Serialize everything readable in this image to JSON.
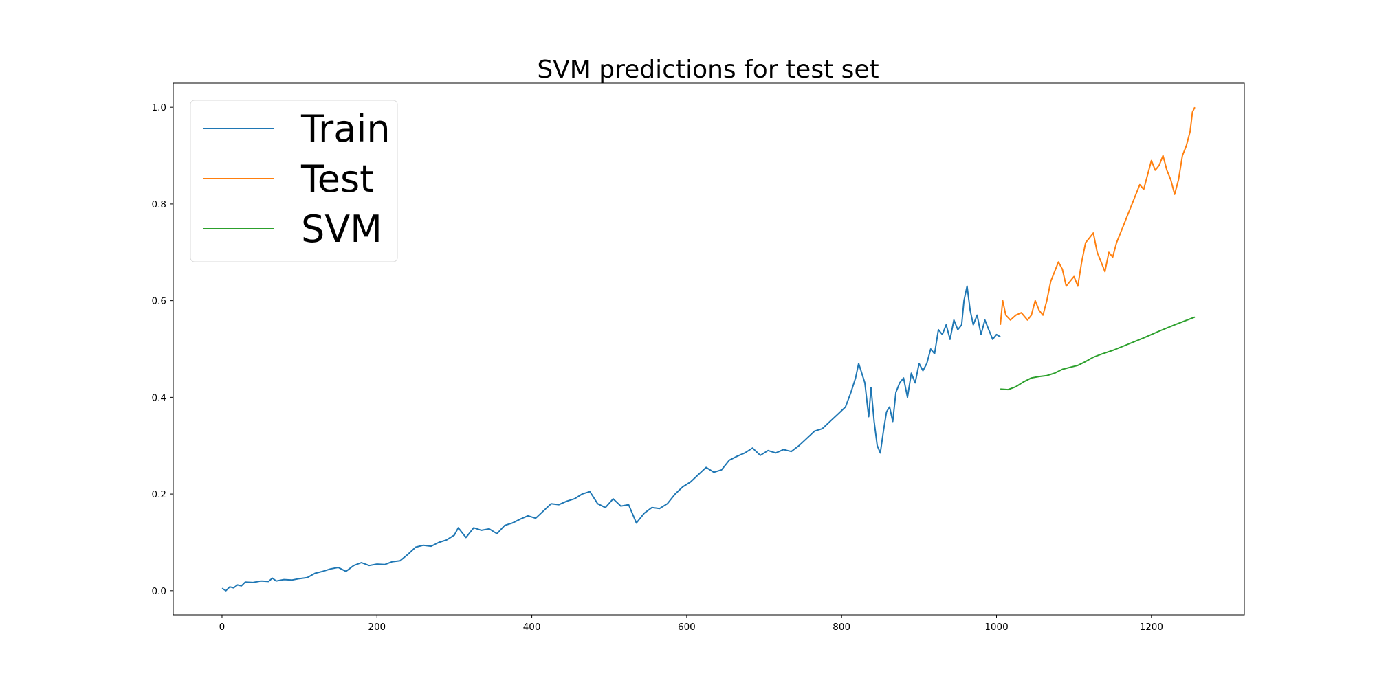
{
  "chart_data": {
    "type": "line",
    "title": "SVM predictions for test set",
    "xlabel": "",
    "ylabel": "",
    "xlim": [
      -63,
      1320
    ],
    "ylim": [
      -0.05,
      1.05
    ],
    "xticks": [
      0,
      200,
      400,
      600,
      800,
      1000,
      1200
    ],
    "yticks": [
      0.0,
      0.2,
      0.4,
      0.6,
      0.8,
      1.0
    ],
    "xtick_labels": [
      "0",
      "200",
      "400",
      "600",
      "800",
      "1000",
      "1200"
    ],
    "ytick_labels": [
      "0.0",
      "0.2",
      "0.4",
      "0.6",
      "0.8",
      "1.0"
    ],
    "grid": false,
    "legend_position": "top-left",
    "series": [
      {
        "name": "Train",
        "color": "#1f77b4",
        "points": [
          [
            0,
            0.005
          ],
          [
            5,
            0.0
          ],
          [
            10,
            0.008
          ],
          [
            15,
            0.006
          ],
          [
            20,
            0.012
          ],
          [
            25,
            0.01
          ],
          [
            30,
            0.018
          ],
          [
            40,
            0.017
          ],
          [
            50,
            0.02
          ],
          [
            60,
            0.019
          ],
          [
            65,
            0.026
          ],
          [
            70,
            0.02
          ],
          [
            80,
            0.023
          ],
          [
            90,
            0.022
          ],
          [
            100,
            0.025
          ],
          [
            110,
            0.027
          ],
          [
            120,
            0.036
          ],
          [
            130,
            0.04
          ],
          [
            140,
            0.045
          ],
          [
            150,
            0.048
          ],
          [
            160,
            0.04
          ],
          [
            170,
            0.052
          ],
          [
            180,
            0.058
          ],
          [
            190,
            0.052
          ],
          [
            200,
            0.055
          ],
          [
            210,
            0.054
          ],
          [
            220,
            0.06
          ],
          [
            230,
            0.062
          ],
          [
            240,
            0.075
          ],
          [
            250,
            0.09
          ],
          [
            260,
            0.094
          ],
          [
            270,
            0.092
          ],
          [
            280,
            0.1
          ],
          [
            290,
            0.105
          ],
          [
            300,
            0.115
          ],
          [
            305,
            0.13
          ],
          [
            315,
            0.11
          ],
          [
            325,
            0.13
          ],
          [
            335,
            0.125
          ],
          [
            345,
            0.128
          ],
          [
            355,
            0.118
          ],
          [
            365,
            0.135
          ],
          [
            375,
            0.14
          ],
          [
            385,
            0.148
          ],
          [
            395,
            0.155
          ],
          [
            405,
            0.15
          ],
          [
            415,
            0.165
          ],
          [
            425,
            0.18
          ],
          [
            435,
            0.178
          ],
          [
            445,
            0.185
          ],
          [
            455,
            0.19
          ],
          [
            465,
            0.2
          ],
          [
            475,
            0.205
          ],
          [
            485,
            0.18
          ],
          [
            495,
            0.172
          ],
          [
            505,
            0.19
          ],
          [
            515,
            0.175
          ],
          [
            525,
            0.178
          ],
          [
            535,
            0.14
          ],
          [
            545,
            0.16
          ],
          [
            555,
            0.172
          ],
          [
            565,
            0.17
          ],
          [
            575,
            0.18
          ],
          [
            585,
            0.2
          ],
          [
            595,
            0.215
          ],
          [
            605,
            0.225
          ],
          [
            615,
            0.24
          ],
          [
            625,
            0.255
          ],
          [
            635,
            0.245
          ],
          [
            645,
            0.25
          ],
          [
            655,
            0.27
          ],
          [
            665,
            0.278
          ],
          [
            675,
            0.285
          ],
          [
            685,
            0.295
          ],
          [
            695,
            0.28
          ],
          [
            705,
            0.29
          ],
          [
            715,
            0.285
          ],
          [
            725,
            0.292
          ],
          [
            735,
            0.288
          ],
          [
            745,
            0.3
          ],
          [
            755,
            0.315
          ],
          [
            765,
            0.33
          ],
          [
            775,
            0.335
          ],
          [
            785,
            0.35
          ],
          [
            795,
            0.365
          ],
          [
            805,
            0.38
          ],
          [
            812,
            0.41
          ],
          [
            818,
            0.44
          ],
          [
            822,
            0.47
          ],
          [
            826,
            0.45
          ],
          [
            830,
            0.43
          ],
          [
            835,
            0.36
          ],
          [
            838,
            0.42
          ],
          [
            842,
            0.35
          ],
          [
            846,
            0.3
          ],
          [
            850,
            0.285
          ],
          [
            854,
            0.33
          ],
          [
            858,
            0.37
          ],
          [
            862,
            0.38
          ],
          [
            866,
            0.35
          ],
          [
            870,
            0.41
          ],
          [
            875,
            0.43
          ],
          [
            880,
            0.44
          ],
          [
            885,
            0.4
          ],
          [
            890,
            0.45
          ],
          [
            895,
            0.43
          ],
          [
            900,
            0.47
          ],
          [
            905,
            0.455
          ],
          [
            910,
            0.47
          ],
          [
            915,
            0.5
          ],
          [
            920,
            0.49
          ],
          [
            925,
            0.54
          ],
          [
            930,
            0.53
          ],
          [
            935,
            0.55
          ],
          [
            940,
            0.52
          ],
          [
            945,
            0.56
          ],
          [
            950,
            0.54
          ],
          [
            955,
            0.55
          ],
          [
            958,
            0.6
          ],
          [
            962,
            0.63
          ],
          [
            966,
            0.58
          ],
          [
            970,
            0.55
          ],
          [
            975,
            0.57
          ],
          [
            980,
            0.53
          ],
          [
            985,
            0.56
          ],
          [
            990,
            0.54
          ],
          [
            995,
            0.52
          ],
          [
            1000,
            0.53
          ],
          [
            1005,
            0.525
          ]
        ]
      },
      {
        "name": "Test",
        "color": "#ff7f0e",
        "points": [
          [
            1005,
            0.55
          ],
          [
            1008,
            0.6
          ],
          [
            1012,
            0.57
          ],
          [
            1018,
            0.56
          ],
          [
            1025,
            0.57
          ],
          [
            1032,
            0.575
          ],
          [
            1040,
            0.56
          ],
          [
            1045,
            0.57
          ],
          [
            1050,
            0.6
          ],
          [
            1055,
            0.58
          ],
          [
            1060,
            0.57
          ],
          [
            1065,
            0.6
          ],
          [
            1070,
            0.64
          ],
          [
            1075,
            0.66
          ],
          [
            1080,
            0.68
          ],
          [
            1085,
            0.665
          ],
          [
            1090,
            0.63
          ],
          [
            1095,
            0.64
          ],
          [
            1100,
            0.65
          ],
          [
            1105,
            0.63
          ],
          [
            1110,
            0.68
          ],
          [
            1115,
            0.72
          ],
          [
            1120,
            0.73
          ],
          [
            1125,
            0.74
          ],
          [
            1130,
            0.7
          ],
          [
            1135,
            0.68
          ],
          [
            1140,
            0.66
          ],
          [
            1145,
            0.7
          ],
          [
            1150,
            0.69
          ],
          [
            1155,
            0.72
          ],
          [
            1160,
            0.74
          ],
          [
            1165,
            0.76
          ],
          [
            1170,
            0.78
          ],
          [
            1175,
            0.8
          ],
          [
            1180,
            0.82
          ],
          [
            1185,
            0.84
          ],
          [
            1190,
            0.83
          ],
          [
            1195,
            0.86
          ],
          [
            1200,
            0.89
          ],
          [
            1205,
            0.87
          ],
          [
            1210,
            0.88
          ],
          [
            1215,
            0.9
          ],
          [
            1220,
            0.87
          ],
          [
            1225,
            0.85
          ],
          [
            1230,
            0.82
          ],
          [
            1235,
            0.85
          ],
          [
            1240,
            0.9
          ],
          [
            1245,
            0.92
          ],
          [
            1250,
            0.95
          ],
          [
            1253,
            0.99
          ],
          [
            1256,
            1.0
          ]
        ]
      },
      {
        "name": "SVM",
        "color": "#2ca02c",
        "points": [
          [
            1005,
            0.417
          ],
          [
            1015,
            0.416
          ],
          [
            1025,
            0.422
          ],
          [
            1035,
            0.432
          ],
          [
            1045,
            0.44
          ],
          [
            1055,
            0.443
          ],
          [
            1065,
            0.445
          ],
          [
            1075,
            0.45
          ],
          [
            1085,
            0.458
          ],
          [
            1095,
            0.462
          ],
          [
            1105,
            0.466
          ],
          [
            1115,
            0.474
          ],
          [
            1125,
            0.483
          ],
          [
            1135,
            0.489
          ],
          [
            1150,
            0.497
          ],
          [
            1170,
            0.51
          ],
          [
            1190,
            0.523
          ],
          [
            1210,
            0.537
          ],
          [
            1230,
            0.55
          ],
          [
            1256,
            0.566
          ]
        ]
      }
    ]
  }
}
